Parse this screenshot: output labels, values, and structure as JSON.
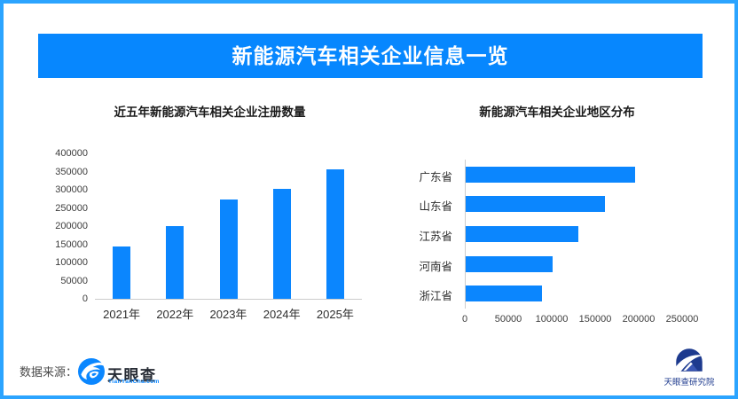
{
  "header": {
    "title": "新能源汽车相关企业信息一览"
  },
  "chart_data": [
    {
      "type": "bar",
      "orientation": "vertical",
      "title": "近五年新能源汽车相关企业注册数量",
      "categories": [
        "2021年",
        "2022年",
        "2023年",
        "2024年",
        "2025年"
      ],
      "values": [
        145000,
        200000,
        273000,
        302000,
        356000
      ],
      "ylim": [
        0,
        400000
      ],
      "ytick_step": 50000,
      "xlabel": "",
      "ylabel": "",
      "grid": false,
      "legend": false
    },
    {
      "type": "bar",
      "orientation": "horizontal",
      "title": "新能源汽车相关企业地区分布",
      "categories": [
        "广东省",
        "山东省",
        "江苏省",
        "河南省",
        "浙江省"
      ],
      "values": [
        195000,
        160000,
        130000,
        100000,
        88000
      ],
      "xlim": [
        0,
        250000
      ],
      "xtick_step": 50000,
      "xlabel": "",
      "ylabel": "",
      "grid": false,
      "legend": false
    }
  ],
  "footer": {
    "source_label": "数据来源：",
    "tianyancha_name": "天眼查",
    "tianyancha_domain": "TianYanCha.com",
    "institute_name": "天眼查研究院"
  },
  "colors": {
    "bar_blue": "#0b86fe",
    "banner_blue": "#0787fe",
    "border_blue": "#2ba4ff",
    "tyc_link_blue": "#0b87ff",
    "institute_navy": "#1d3a8e"
  }
}
